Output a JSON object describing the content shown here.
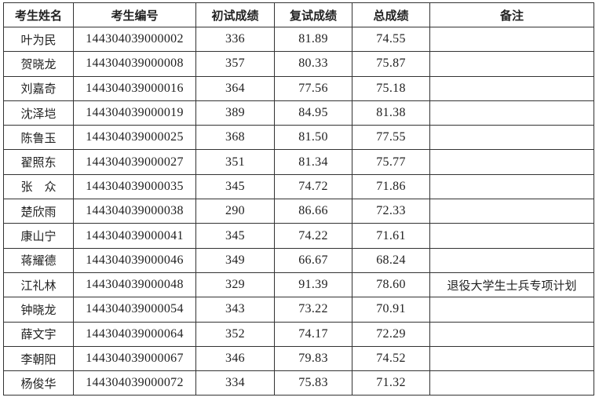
{
  "headers": [
    "考生姓名",
    "考生编号",
    "初试成绩",
    "复试成绩",
    "总成绩",
    "备注"
  ],
  "rows": [
    [
      "叶为民",
      "144304039000002",
      "336",
      "81.89",
      "74.55",
      ""
    ],
    [
      "贺晓龙",
      "144304039000008",
      "357",
      "80.33",
      "75.87",
      ""
    ],
    [
      "刘嘉奇",
      "144304039000016",
      "364",
      "77.56",
      "75.18",
      ""
    ],
    [
      "沈泽垲",
      "144304039000019",
      "389",
      "84.95",
      "81.38",
      ""
    ],
    [
      "陈鲁玉",
      "144304039000025",
      "368",
      "81.50",
      "77.55",
      ""
    ],
    [
      "翟照东",
      "144304039000027",
      "351",
      "81.34",
      "75.77",
      ""
    ],
    [
      "张　众",
      "144304039000035",
      "345",
      "74.72",
      "71.86",
      ""
    ],
    [
      "楚欣雨",
      "144304039000038",
      "290",
      "86.66",
      "72.33",
      ""
    ],
    [
      "康山宁",
      "144304039000041",
      "345",
      "74.22",
      "71.61",
      ""
    ],
    [
      "蒋耀德",
      "144304039000046",
      "349",
      "66.67",
      "68.24",
      ""
    ],
    [
      "江礼林",
      "144304039000048",
      "329",
      "91.39",
      "78.60",
      "退役大学生士兵专项计划"
    ],
    [
      "钟晓龙",
      "144304039000054",
      "343",
      "73.22",
      "70.91",
      ""
    ],
    [
      "薛文宇",
      "144304039000064",
      "352",
      "74.17",
      "72.29",
      ""
    ],
    [
      "李朝阳",
      "144304039000067",
      "346",
      "79.83",
      "74.52",
      ""
    ],
    [
      "杨俊华",
      "144304039000072",
      "334",
      "75.83",
      "71.32",
      ""
    ]
  ]
}
